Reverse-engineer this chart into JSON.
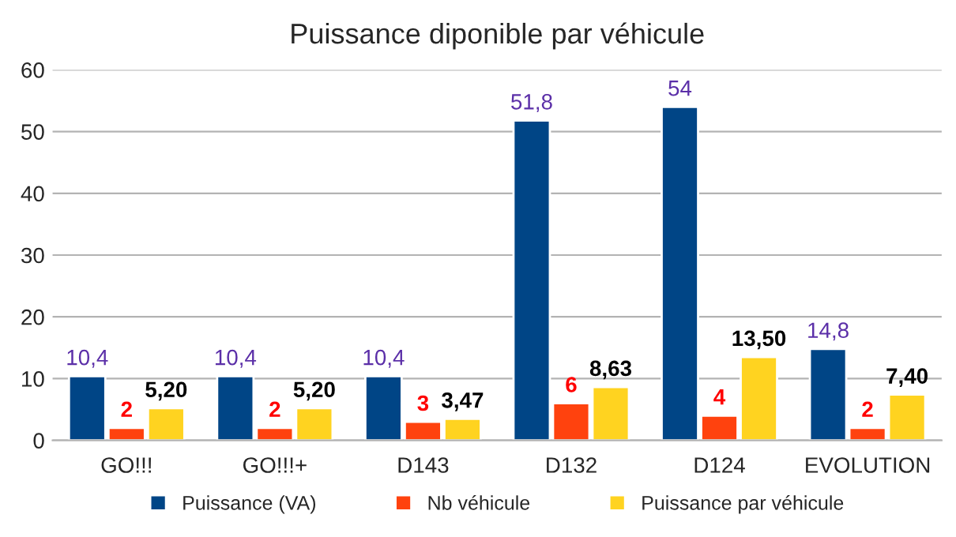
{
  "chart_data": {
    "type": "bar",
    "title": "Puissance diponible par véhicule",
    "categories": [
      "GO!!!",
      "GO!!!+",
      "D143",
      "D132",
      "D124",
      "EVOLUTION"
    ],
    "series": [
      {
        "name": "Puissance (VA)",
        "color": "#004586",
        "values": [
          10.4,
          10.4,
          10.4,
          51.8,
          54,
          14.8
        ],
        "value_labels": [
          "10,4",
          "10,4",
          "10,4",
          "51,8",
          "54",
          "14,8"
        ]
      },
      {
        "name": "Nb véhicule",
        "color": "#ff420e",
        "values": [
          2,
          2,
          3,
          6,
          4,
          2
        ],
        "value_labels": [
          "2",
          "2",
          "3",
          "6",
          "4",
          "2"
        ]
      },
      {
        "name": "Puissance par véhicule",
        "color": "#ffd320",
        "values": [
          5.2,
          5.2,
          3.47,
          8.63,
          13.5,
          7.4
        ],
        "value_labels": [
          "5,20",
          "5,20",
          "3,47",
          "8,63",
          "13,50",
          "7,40"
        ]
      }
    ],
    "ylim": [
      0,
      60
    ],
    "yticks": [
      0,
      10,
      20,
      30,
      40,
      50,
      60
    ],
    "grid": "y",
    "legend": "bottom"
  }
}
